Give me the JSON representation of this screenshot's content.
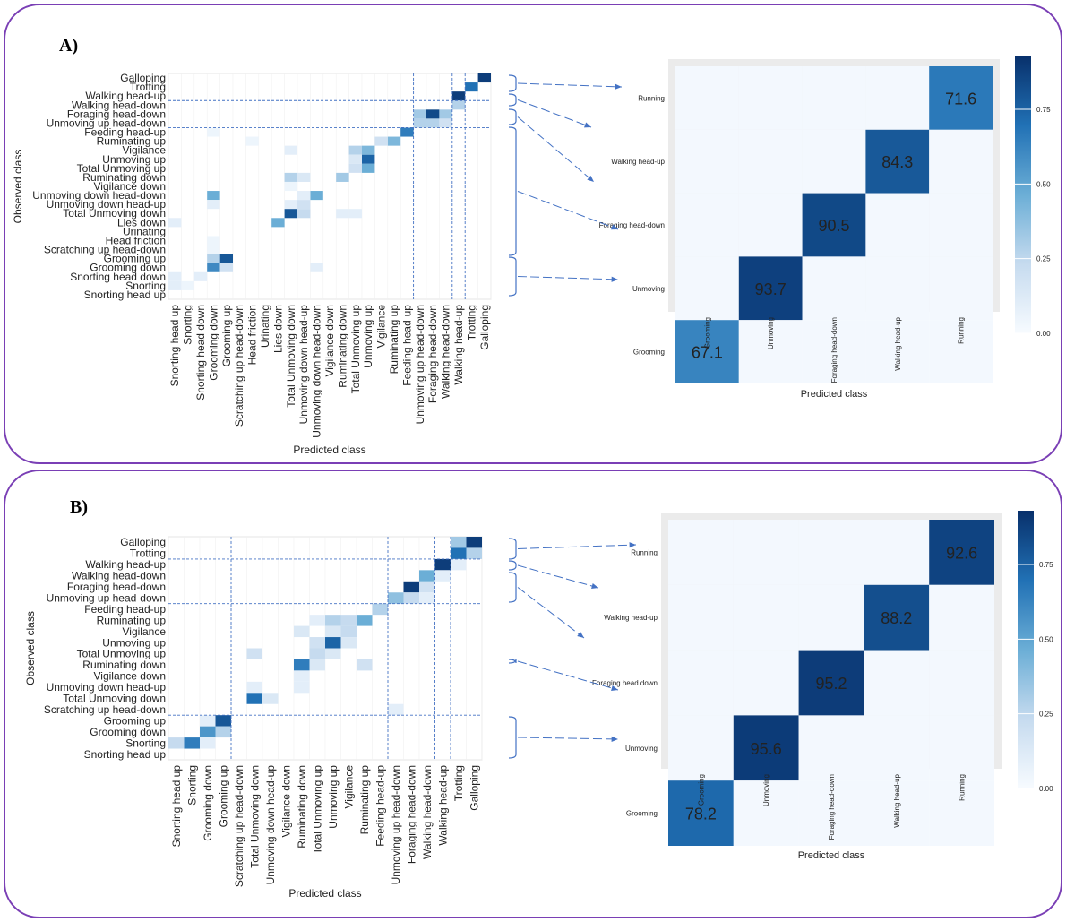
{
  "colors": {
    "border": "#7a3fb5",
    "arrow": "#4472c4",
    "low": "#f7fbff",
    "high": "#08306b"
  },
  "panels": [
    {
      "label": "A)"
    },
    {
      "label": "B)"
    }
  ],
  "chart_data": [
    {
      "type": "heatmap",
      "panel": "A",
      "xlabel": "Predicted class",
      "ylabel": "Observed class",
      "y_categories": [
        "Galloping",
        "Trotting",
        "Walking head-up",
        "Walking head-down",
        "Foraging head-down",
        "Unmoving up head-down",
        "Feeding head-up",
        "Ruminating up",
        "Vigilance",
        "Unmoving up",
        "Total Unmoving up",
        "Ruminating down",
        "Vigilance down",
        "Unmoving down head-down",
        "Unmoving down head-up",
        "Total Unmoving down",
        "Lies down",
        "Urinating",
        "Head friction",
        "Scratching up head-down",
        "Grooming up",
        "Grooming down",
        "Snorting head down",
        "Snorting",
        "Snorting head up"
      ],
      "x_categories": [
        "Snorting head up",
        "Snorting",
        "Snorting head down",
        "Grooming down",
        "Grooming up",
        "Scratching up head-down",
        "Head friction",
        "Urinating",
        "Lies down",
        "Total Unmoving down",
        "Unmoving down head-up",
        "Unmoving down head-down",
        "Vigilance down",
        "Ruminating down",
        "Total Unmoving up",
        "Unmoving up",
        "Vigilance",
        "Ruminating up",
        "Feeding head-up",
        "Unmoving up head-down",
        "Foraging head-down",
        "Walking head-down",
        "Walking head-up",
        "Trotting",
        "Galloping"
      ],
      "cells": [
        [
          0,
          24,
          0.95
        ],
        [
          1,
          23,
          0.75
        ],
        [
          2,
          22,
          0.95
        ],
        [
          3,
          22,
          0.3
        ],
        [
          4,
          19,
          0.35
        ],
        [
          4,
          20,
          0.9
        ],
        [
          4,
          21,
          0.35
        ],
        [
          5,
          19,
          0.3
        ],
        [
          5,
          20,
          0.3
        ],
        [
          5,
          21,
          0.2
        ],
        [
          6,
          18,
          0.7
        ],
        [
          6,
          3,
          0.05
        ],
        [
          7,
          17,
          0.45
        ],
        [
          7,
          16,
          0.2
        ],
        [
          7,
          6,
          0.05
        ],
        [
          8,
          15,
          0.45
        ],
        [
          8,
          14,
          0.3
        ],
        [
          8,
          9,
          0.1
        ],
        [
          9,
          15,
          0.8
        ],
        [
          9,
          14,
          0.15
        ],
        [
          10,
          15,
          0.5
        ],
        [
          10,
          14,
          0.2
        ],
        [
          11,
          9,
          0.3
        ],
        [
          11,
          13,
          0.35
        ],
        [
          11,
          10,
          0.15
        ],
        [
          12,
          9,
          0.05
        ],
        [
          13,
          3,
          0.5
        ],
        [
          13,
          11,
          0.5
        ],
        [
          13,
          10,
          0.1
        ],
        [
          14,
          9,
          0.1
        ],
        [
          14,
          10,
          0.2
        ],
        [
          14,
          3,
          0.1
        ],
        [
          15,
          9,
          0.85
        ],
        [
          15,
          10,
          0.25
        ],
        [
          15,
          13,
          0.1
        ],
        [
          15,
          14,
          0.1
        ],
        [
          16,
          8,
          0.5
        ],
        [
          16,
          0,
          0.1
        ],
        [
          18,
          3,
          0.05
        ],
        [
          19,
          3,
          0.05
        ],
        [
          20,
          4,
          0.85
        ],
        [
          20,
          3,
          0.3
        ],
        [
          21,
          3,
          0.65
        ],
        [
          21,
          4,
          0.2
        ],
        [
          21,
          11,
          0.1
        ],
        [
          22,
          0,
          0.1
        ],
        [
          22,
          2,
          0.1
        ],
        [
          23,
          0,
          0.1
        ],
        [
          23,
          1,
          0.05
        ]
      ],
      "zoom": {
        "categories": [
          "Grooming",
          "Unmoving",
          "Foraging head-down",
          "Walking head-up",
          "Running"
        ],
        "diagonal": [
          67.1,
          93.7,
          90.5,
          84.3,
          71.6
        ],
        "xlabel": "Predicted class",
        "legend_ticks": [
          "0.75",
          "0.50",
          "0.25",
          "0.00"
        ],
        "legend_range": [
          0,
          0.93
        ]
      }
    },
    {
      "type": "heatmap",
      "panel": "B",
      "xlabel": "Predicted class",
      "ylabel": "Observed class",
      "y_categories": [
        "Galloping",
        "Trotting",
        "Walking head-up",
        "Walking head-down",
        "Foraging head-down",
        "Unmoving up head-down",
        "Feeding head-up",
        "Ruminating up",
        "Vigilance",
        "Unmoving up",
        "Total Unmoving up",
        "Ruminating down",
        "Vigilance down",
        "Unmoving down head-up",
        "Total Unmoving down",
        "Scratching up head-down",
        "Grooming up",
        "Grooming down",
        "Snorting",
        "Snorting head up"
      ],
      "x_categories": [
        "Snorting head up",
        "Snorting",
        "Grooming down",
        "Grooming up",
        "Scratching up head-down",
        "Total Unmoving down",
        "Unmoving down head-up",
        "Vigilance down",
        "Ruminating down",
        "Total Unmoving up",
        "Unmoving up",
        "Vigilance",
        "Ruminating up",
        "Feeding head-up",
        "Unmoving up head-down",
        "Foraging head-down",
        "Walking head-down",
        "Walking head-up",
        "Trotting",
        "Galloping"
      ],
      "cells": [
        [
          0,
          19,
          0.95
        ],
        [
          0,
          18,
          0.35
        ],
        [
          1,
          18,
          0.75
        ],
        [
          1,
          19,
          0.3
        ],
        [
          2,
          17,
          0.95
        ],
        [
          2,
          18,
          0.1
        ],
        [
          3,
          16,
          0.5
        ],
        [
          3,
          17,
          0.1
        ],
        [
          4,
          15,
          0.95
        ],
        [
          4,
          16,
          0.2
        ],
        [
          5,
          14,
          0.4
        ],
        [
          5,
          15,
          0.25
        ],
        [
          5,
          16,
          0.1
        ],
        [
          6,
          13,
          0.3
        ],
        [
          7,
          12,
          0.5
        ],
        [
          7,
          10,
          0.3
        ],
        [
          7,
          11,
          0.25
        ],
        [
          7,
          9,
          0.1
        ],
        [
          8,
          8,
          0.15
        ],
        [
          8,
          11,
          0.25
        ],
        [
          8,
          10,
          0.15
        ],
        [
          9,
          10,
          0.8
        ],
        [
          9,
          9,
          0.2
        ],
        [
          9,
          11,
          0.15
        ],
        [
          10,
          5,
          0.2
        ],
        [
          10,
          9,
          0.25
        ],
        [
          10,
          10,
          0.15
        ],
        [
          11,
          8,
          0.7
        ],
        [
          11,
          9,
          0.15
        ],
        [
          11,
          12,
          0.2
        ],
        [
          12,
          8,
          0.1
        ],
        [
          13,
          5,
          0.1
        ],
        [
          13,
          8,
          0.1
        ],
        [
          14,
          5,
          0.75
        ],
        [
          14,
          6,
          0.15
        ],
        [
          15,
          14,
          0.1
        ],
        [
          16,
          3,
          0.85
        ],
        [
          16,
          2,
          0.1
        ],
        [
          17,
          2,
          0.6
        ],
        [
          17,
          3,
          0.3
        ],
        [
          18,
          1,
          0.7
        ],
        [
          18,
          0,
          0.25
        ],
        [
          18,
          2,
          0.1
        ]
      ],
      "zoom": {
        "categories": [
          "Grooming",
          "Unmoving",
          "Foraging head-down",
          "Walking head-up",
          "Running"
        ],
        "row_labels": [
          "Running",
          "Walking head-up",
          "Foraging head down",
          "Unmoving",
          "Grooming"
        ],
        "diagonal": [
          78.2,
          95.6,
          95.2,
          88.2,
          92.6
        ],
        "xlabel": "Predicted class",
        "legend_ticks": [
          "0.75",
          "0.50",
          "0.25",
          "0.00"
        ],
        "legend_range": [
          0,
          0.93
        ]
      }
    }
  ]
}
